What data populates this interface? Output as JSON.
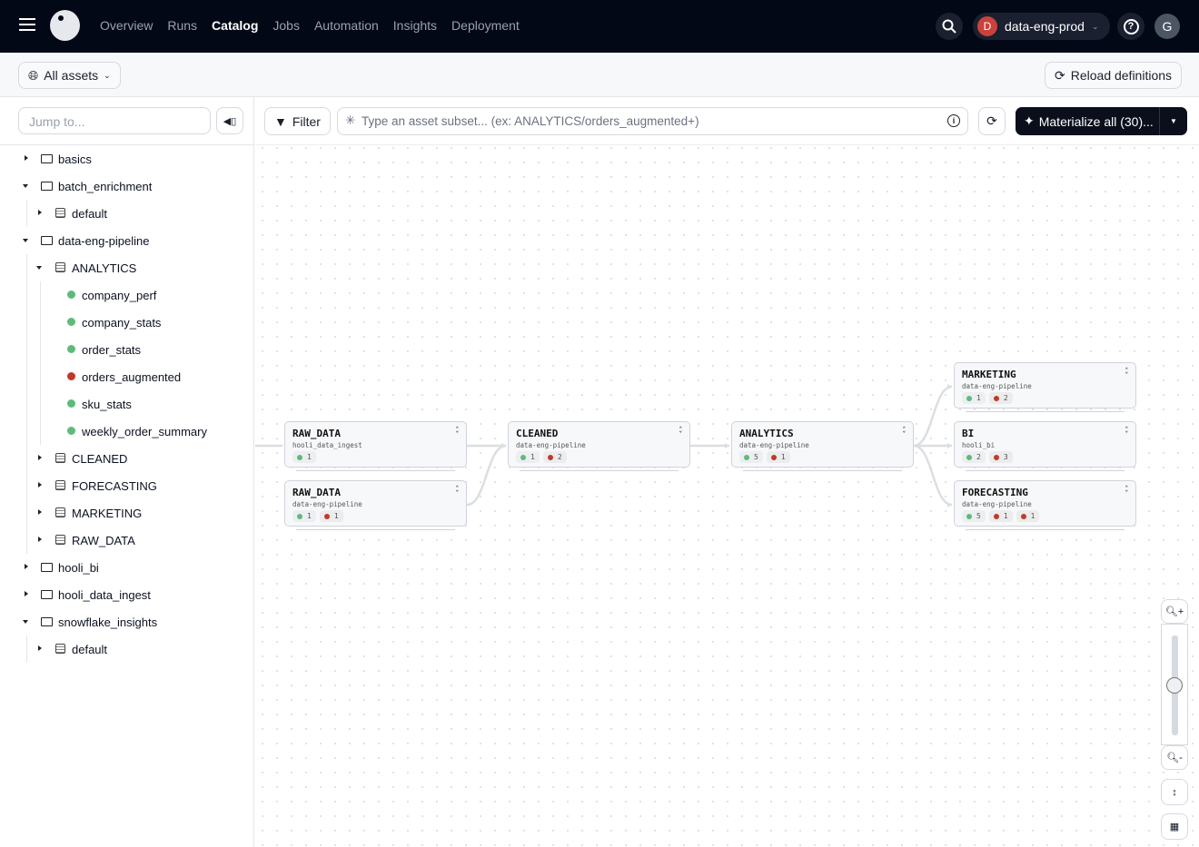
{
  "nav": {
    "items": [
      "Overview",
      "Runs",
      "Catalog",
      "Jobs",
      "Automation",
      "Insights",
      "Deployment"
    ],
    "active": "Catalog",
    "deployment": "data-eng-prod",
    "deployment_initial": "D",
    "user_initial": "G"
  },
  "subbar": {
    "scope": "All assets",
    "reload": "Reload definitions"
  },
  "sidebar": {
    "jump_placeholder": "Jump to...",
    "tree": [
      {
        "label": "basics",
        "level": 0,
        "type": "folder",
        "expanded": false
      },
      {
        "label": "batch_enrichment",
        "level": 0,
        "type": "folder",
        "expanded": true
      },
      {
        "label": "default",
        "level": 1,
        "type": "schema",
        "expanded": false
      },
      {
        "label": "data-eng-pipeline",
        "level": 0,
        "type": "folder",
        "expanded": true
      },
      {
        "label": "ANALYTICS",
        "level": 1,
        "type": "schema",
        "expanded": true
      },
      {
        "label": "company_perf",
        "level": 2,
        "type": "asset",
        "status": "ok"
      },
      {
        "label": "company_stats",
        "level": 2,
        "type": "asset",
        "status": "ok"
      },
      {
        "label": "order_stats",
        "level": 2,
        "type": "asset",
        "status": "ok"
      },
      {
        "label": "orders_augmented",
        "level": 2,
        "type": "asset",
        "status": "failed"
      },
      {
        "label": "sku_stats",
        "level": 2,
        "type": "asset",
        "status": "ok"
      },
      {
        "label": "weekly_order_summary",
        "level": 2,
        "type": "asset",
        "status": "ok"
      },
      {
        "label": "CLEANED",
        "level": 1,
        "type": "schema",
        "expanded": false
      },
      {
        "label": "FORECASTING",
        "level": 1,
        "type": "schema",
        "expanded": false
      },
      {
        "label": "MARKETING",
        "level": 1,
        "type": "schema",
        "expanded": false
      },
      {
        "label": "RAW_DATA",
        "level": 1,
        "type": "schema",
        "expanded": false
      },
      {
        "label": "hooli_bi",
        "level": 0,
        "type": "folder",
        "expanded": false
      },
      {
        "label": "hooli_data_ingest",
        "level": 0,
        "type": "folder",
        "expanded": false
      },
      {
        "label": "snowflake_insights",
        "level": 0,
        "type": "folder",
        "expanded": true
      },
      {
        "label": "default",
        "level": 1,
        "type": "schema",
        "expanded": false
      }
    ]
  },
  "toolbar": {
    "filter": "Filter",
    "search_placeholder": "Type an asset subset... (ex: ANALYTICS/orders_augmented+)",
    "materialize": "Materialize all (30)..."
  },
  "graph": {
    "nodes": [
      {
        "id": "raw1",
        "title": "RAW_DATA",
        "sub": "hooli_data_ingest",
        "counts": [
          {
            "s": "ok",
            "n": "1"
          }
        ]
      },
      {
        "id": "raw2",
        "title": "RAW_DATA",
        "sub": "data-eng-pipeline",
        "counts": [
          {
            "s": "ok",
            "n": "1"
          },
          {
            "s": "failed",
            "n": "1"
          }
        ]
      },
      {
        "id": "cleaned",
        "title": "CLEANED",
        "sub": "data-eng-pipeline",
        "counts": [
          {
            "s": "ok",
            "n": "1"
          },
          {
            "s": "failed",
            "n": "2"
          }
        ]
      },
      {
        "id": "analytics",
        "title": "ANALYTICS",
        "sub": "data-eng-pipeline",
        "counts": [
          {
            "s": "ok",
            "n": "5"
          },
          {
            "s": "failed",
            "n": "1"
          }
        ]
      },
      {
        "id": "marketing",
        "title": "MARKETING",
        "sub": "data-eng-pipeline",
        "counts": [
          {
            "s": "ok",
            "n": "1"
          },
          {
            "s": "failed",
            "n": "2"
          }
        ]
      },
      {
        "id": "bi",
        "title": "BI",
        "sub": "hooli_bi",
        "counts": [
          {
            "s": "ok",
            "n": "2"
          },
          {
            "s": "failed",
            "n": "3"
          }
        ]
      },
      {
        "id": "forecasting",
        "title": "FORECASTING",
        "sub": "data-eng-pipeline",
        "counts": [
          {
            "s": "ok",
            "n": "5"
          },
          {
            "s": "failed",
            "n": "1"
          },
          {
            "s": "failed",
            "n": "1"
          }
        ]
      }
    ],
    "edges": [
      [
        "raw1",
        "cleaned"
      ],
      [
        "raw2",
        "cleaned"
      ],
      [
        "cleaned",
        "analytics"
      ],
      [
        "analytics",
        "marketing"
      ],
      [
        "analytics",
        "bi"
      ],
      [
        "analytics",
        "forecasting"
      ]
    ],
    "zoom_level": 0.5
  },
  "colors": {
    "ok": "#5dbb7a",
    "failed": "#c0392b",
    "nav_bg": "#030816"
  }
}
